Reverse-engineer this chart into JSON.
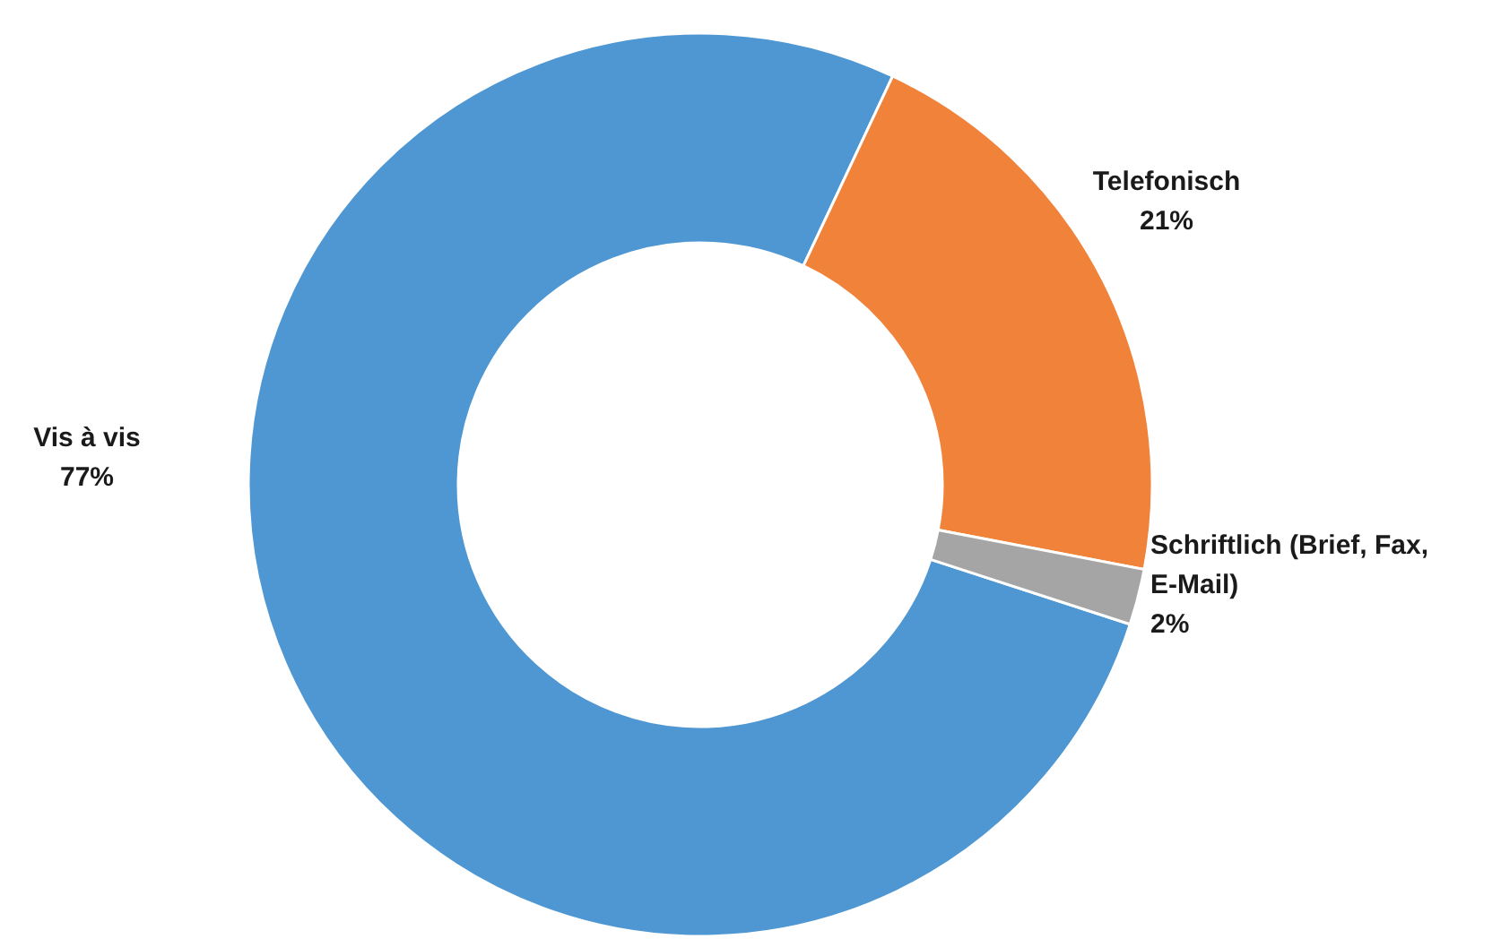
{
  "chart_data": {
    "type": "donut",
    "categories": [
      "Vis à vis",
      "Telefonisch",
      "Schriftlich (Brief, Fax, E-Mail)"
    ],
    "values": [
      77,
      21,
      2
    ],
    "colors": [
      "#4e97d2",
      "#f0823a",
      "#a5a5a5"
    ],
    "value_labels": [
      "77%",
      "21%",
      "2%"
    ]
  }
}
